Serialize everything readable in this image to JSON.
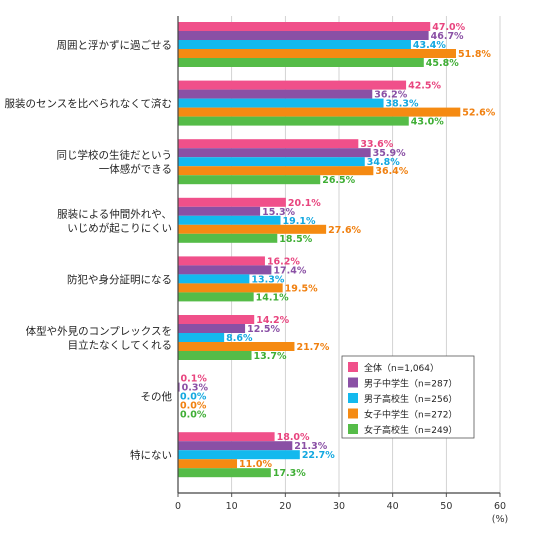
{
  "chart_data": {
    "type": "bar",
    "orientation": "horizontal",
    "categories": [
      [
        "周囲と浮かずに過ごせる"
      ],
      [
        "服装のセンスを比べられなくて済む"
      ],
      [
        "同じ学校の生徒だという",
        "一体感ができる"
      ],
      [
        "服装による仲間外れや、",
        "いじめが起こりにくい"
      ],
      [
        "防犯や身分証明になる"
      ],
      [
        "体型や外見のコンプレックスを",
        "目立たなくしてくれる"
      ],
      [
        "その他"
      ],
      [
        "特にない"
      ]
    ],
    "series": [
      {
        "name": "全体（n=1,064）",
        "color": "#f0508a",
        "label_color": "#e8457f",
        "values": [
          47.0,
          42.5,
          33.6,
          20.1,
          16.2,
          14.2,
          0.1,
          18.0
        ]
      },
      {
        "name": "男子中学生（n=287）",
        "color": "#8a50a5",
        "label_color": "#8a50a5",
        "values": [
          46.7,
          36.2,
          35.9,
          15.3,
          17.4,
          12.5,
          0.3,
          21.3
        ]
      },
      {
        "name": "男子高校生（n=256）",
        "color": "#13b9ee",
        "label_color": "#13a8e0",
        "values": [
          43.4,
          38.3,
          34.8,
          19.1,
          13.3,
          8.6,
          0.0,
          22.7
        ]
      },
      {
        "name": "女子中学生（n=272）",
        "color": "#f58a12",
        "label_color": "#f08010",
        "values": [
          51.8,
          52.6,
          36.4,
          27.6,
          19.5,
          21.7,
          0.0,
          11.0
        ]
      },
      {
        "name": "女子高校生（n=249）",
        "color": "#55bc48",
        "label_color": "#3fae35",
        "values": [
          45.8,
          43.0,
          26.5,
          18.5,
          14.1,
          13.7,
          0.0,
          17.3
        ]
      }
    ],
    "xlim": [
      0,
      60
    ],
    "xticks": [
      "0",
      "10",
      "20",
      "30",
      "40",
      "50",
      "60"
    ],
    "xunit": "(%)",
    "grid": true,
    "legend_position": "lower-right"
  }
}
